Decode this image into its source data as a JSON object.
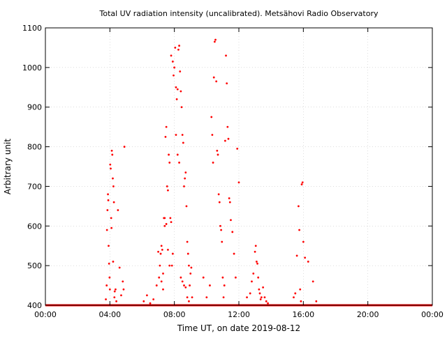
{
  "chart_data": {
    "type": "scatter",
    "title": "Total UV radiation intensity (uncalibrated). Metsähovi Radio Observatory",
    "xlabel": "Time UT, on date 2019-08-12",
    "ylabel": "Arbitrary unit",
    "xlim": [
      0,
      24
    ],
    "ylim": [
      400,
      1100
    ],
    "x_ticks": [
      0,
      4,
      8,
      12,
      16,
      20,
      24
    ],
    "x_tick_labels": [
      "00:00",
      "04:00",
      "08:00",
      "12:00",
      "16:00",
      "20:00",
      "00:00"
    ],
    "y_ticks": [
      400,
      500,
      600,
      700,
      800,
      900,
      1000,
      1100
    ],
    "y_tick_labels": [
      "400",
      "500",
      "600",
      "700",
      "800",
      "900",
      "1000",
      "1100"
    ],
    "grid": true,
    "marker_color": "#ff0000",
    "baseline": {
      "value": 400,
      "x_from": 0,
      "x_to": 24
    },
    "series": [
      {
        "x": [
          3.75,
          3.8,
          3.82,
          3.85,
          3.88,
          3.9,
          3.92,
          3.95,
          3.98,
          4.0,
          4.02,
          4.05,
          4.08,
          4.1,
          4.12,
          4.15,
          4.18,
          4.2,
          4.22,
          4.25,
          4.28,
          4.3,
          4.35,
          4.4,
          4.5,
          4.6,
          4.7,
          4.8,
          4.85,
          4.9,
          6.1,
          6.3,
          6.5,
          6.7,
          6.9,
          7.0,
          7.05,
          7.1,
          7.15,
          7.2,
          7.25,
          7.3,
          7.35,
          7.4,
          7.45,
          7.5,
          7.55,
          7.6,
          7.65,
          7.7,
          7.75,
          7.8,
          7.85,
          7.9,
          7.95,
          8.0,
          8.05,
          8.1,
          8.15,
          8.2,
          8.25,
          8.3,
          8.35,
          8.4,
          8.45,
          8.5,
          8.55,
          8.6,
          8.65,
          8.7,
          8.75,
          8.8,
          8.85,
          8.9,
          8.95,
          9.0,
          9.05,
          9.1,
          7.2,
          7.3,
          7.4,
          7.5,
          7.6,
          7.7,
          7.8,
          7.9,
          8.0,
          8.1,
          8.2,
          8.3,
          8.4,
          8.5,
          8.6,
          8.7,
          8.8,
          8.9,
          9.8,
          10.0,
          10.2,
          10.3,
          10.35,
          10.4,
          10.45,
          10.5,
          10.55,
          10.6,
          10.65,
          10.7,
          10.75,
          10.8,
          10.85,
          10.9,
          10.95,
          11.0,
          11.05,
          11.1,
          11.15,
          11.2,
          11.25,
          11.3,
          11.35,
          11.4,
          11.45,
          11.5,
          11.6,
          11.7,
          11.8,
          11.9,
          12.0,
          12.5,
          12.7,
          12.8,
          12.9,
          13.0,
          13.05,
          13.1,
          13.15,
          13.2,
          13.25,
          13.3,
          13.35,
          13.4,
          13.5,
          13.6,
          13.7,
          13.8,
          15.4,
          15.5,
          15.6,
          15.7,
          15.75,
          15.8,
          15.85,
          15.9,
          15.95,
          16.0,
          16.1,
          16.3,
          16.6,
          16.8
        ],
        "y": [
          415,
          450,
          590,
          640,
          680,
          665,
          550,
          505,
          470,
          440,
          755,
          745,
          620,
          595,
          790,
          780,
          720,
          510,
          700,
          660,
          420,
          435,
          440,
          410,
          640,
          495,
          425,
          460,
          440,
          800,
          410,
          425,
          405,
          415,
          450,
          535,
          470,
          500,
          530,
          550,
          540,
          480,
          620,
          600,
          825,
          850,
          700,
          690,
          780,
          760,
          620,
          610,
          500,
          530,
          980,
          1000,
          1050,
          950,
          920,
          945,
          1045,
          1055,
          990,
          940,
          900,
          830,
          810,
          700,
          720,
          735,
          650,
          560,
          530,
          500,
          450,
          480,
          495,
          420,
          460,
          440,
          620,
          605,
          540,
          500,
          1030,
          1015,
          1000,
          830,
          780,
          760,
          470,
          460,
          450,
          445,
          420,
          410,
          470,
          420,
          450,
          875,
          830,
          760,
          975,
          1065,
          1070,
          965,
          790,
          780,
          680,
          660,
          600,
          590,
          560,
          470,
          420,
          450,
          815,
          1030,
          960,
          850,
          820,
          670,
          660,
          615,
          585,
          530,
          470,
          795,
          710,
          420,
          430,
          460,
          480,
          535,
          550,
          510,
          505,
          470,
          440,
          430,
          415,
          420,
          445,
          420,
          410,
          405,
          420,
          430,
          525,
          650,
          590,
          440,
          410,
          705,
          710,
          560,
          520,
          510,
          460,
          410
        ]
      }
    ]
  }
}
